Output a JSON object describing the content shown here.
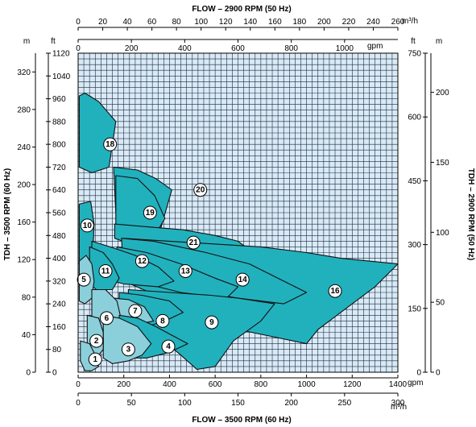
{
  "chart_data": {
    "type": "area",
    "title_top": "FLOW – 2900 RPM (50 Hz)",
    "title_bottom": "FLOW – 3500 RPM (60 Hz)",
    "ylabel_left": "TDH – 3500 RPM (60 Hz)",
    "ylabel_right": "TDH – 2900 RPM (50 Hz)",
    "axes": {
      "bottom_gpm": {
        "unit": "gpm",
        "range": [
          0,
          1400
        ],
        "ticks": [
          "0",
          "200",
          "400",
          "600",
          "800",
          "1000",
          "1200",
          "1400"
        ]
      },
      "bottom_m3h": {
        "unit": "m³/h",
        "range": [
          0,
          300
        ],
        "ticks": [
          "0",
          "50",
          "100",
          "150",
          "200",
          "250",
          "300"
        ]
      },
      "top_m3h": {
        "unit": "m³/h",
        "range": [
          0,
          260
        ],
        "ticks": [
          "0",
          "20",
          "40",
          "60",
          "80",
          "100",
          "120",
          "140",
          "160",
          "180",
          "200",
          "220",
          "240",
          "260"
        ]
      },
      "top_gpm": {
        "unit": "gpm",
        "range": [
          0,
          1200
        ],
        "ticks": [
          "0",
          "200",
          "400",
          "600",
          "800",
          "1000"
        ]
      },
      "left_ft": {
        "unit": "ft",
        "range": [
          0,
          1120
        ],
        "ticks": [
          "0",
          "80",
          "160",
          "240",
          "320",
          "400",
          "480",
          "560",
          "640",
          "720",
          "800",
          "880",
          "960",
          "1040",
          "1120"
        ]
      },
      "left_m": {
        "unit": "m",
        "range": [
          0,
          340
        ],
        "ticks": [
          "0",
          "40",
          "80",
          "120",
          "160",
          "200",
          "240",
          "280",
          "320"
        ]
      },
      "right_ft": {
        "unit": "ft",
        "range": [
          0,
          750
        ],
        "ticks": [
          "0",
          "150",
          "300",
          "450",
          "600",
          "750"
        ]
      },
      "right_m": {
        "unit": "m",
        "range": [
          0,
          228
        ],
        "ticks": [
          "0",
          "50",
          "100",
          "150",
          "200"
        ]
      }
    },
    "regions": [
      {
        "label": "18",
        "shade": "dark",
        "points": [
          [
            5,
            970
          ],
          [
            30,
            980
          ],
          [
            90,
            950
          ],
          [
            165,
            880
          ],
          [
            135,
            720
          ],
          [
            60,
            700
          ],
          [
            5,
            720
          ]
        ]
      },
      {
        "label": "20",
        "shade": "dark",
        "points": [
          [
            155,
            720
          ],
          [
            260,
            710
          ],
          [
            340,
            680
          ],
          [
            410,
            640
          ],
          [
            360,
            500
          ],
          [
            230,
            520
          ],
          [
            165,
            560
          ]
        ]
      },
      {
        "label": "19",
        "shade": "dark",
        "points": [
          [
            165,
            690
          ],
          [
            260,
            680
          ],
          [
            335,
            620
          ],
          [
            380,
            540
          ],
          [
            320,
            460
          ],
          [
            220,
            470
          ],
          [
            165,
            510
          ]
        ]
      },
      {
        "label": "10",
        "shade": "dark",
        "points": [
          [
            5,
            590
          ],
          [
            55,
            600
          ],
          [
            70,
            520
          ],
          [
            65,
            420
          ],
          [
            35,
            370
          ],
          [
            5,
            380
          ]
        ]
      },
      {
        "label": "21",
        "shade": "dark",
        "points": [
          [
            160,
            520
          ],
          [
            310,
            510
          ],
          [
            460,
            500
          ],
          [
            600,
            480
          ],
          [
            700,
            460
          ],
          [
            750,
            430
          ],
          [
            680,
            400
          ],
          [
            420,
            420
          ],
          [
            230,
            450
          ],
          [
            160,
            470
          ]
        ]
      },
      {
        "label": "16",
        "shade": "dark",
        "points": [
          [
            200,
            470
          ],
          [
            400,
            460
          ],
          [
            600,
            450
          ],
          [
            800,
            440
          ],
          [
            1000,
            420
          ],
          [
            1150,
            400
          ],
          [
            1400,
            380
          ],
          [
            1300,
            300
          ],
          [
            1100,
            180
          ],
          [
            1050,
            150
          ],
          [
            1000,
            100
          ],
          [
            700,
            150
          ],
          [
            400,
            250
          ],
          [
            200,
            320
          ]
        ]
      },
      {
        "label": "14",
        "shade": "dark",
        "points": [
          [
            190,
            470
          ],
          [
            330,
            460
          ],
          [
            560,
            420
          ],
          [
            750,
            380
          ],
          [
            900,
            320
          ],
          [
            1000,
            280
          ],
          [
            900,
            240
          ],
          [
            700,
            260
          ],
          [
            400,
            300
          ],
          [
            200,
            330
          ]
        ]
      },
      {
        "label": "13",
        "shade": "dark",
        "points": [
          [
            170,
            440
          ],
          [
            300,
            420
          ],
          [
            450,
            380
          ],
          [
            600,
            330
          ],
          [
            700,
            300
          ],
          [
            650,
            260
          ],
          [
            450,
            280
          ],
          [
            250,
            320
          ],
          [
            170,
            340
          ]
        ]
      },
      {
        "label": "12",
        "shade": "dark",
        "points": [
          [
            60,
            460
          ],
          [
            140,
            440
          ],
          [
            250,
            410
          ],
          [
            350,
            370
          ],
          [
            420,
            320
          ],
          [
            350,
            300
          ],
          [
            200,
            310
          ],
          [
            100,
            330
          ],
          [
            60,
            350
          ]
        ]
      },
      {
        "label": "11",
        "shade": "dark",
        "points": [
          [
            50,
            440
          ],
          [
            110,
            420
          ],
          [
            150,
            380
          ],
          [
            180,
            330
          ],
          [
            150,
            290
          ],
          [
            80,
            290
          ],
          [
            50,
            310
          ]
        ]
      },
      {
        "label": "5",
        "shade": "light",
        "points": [
          [
            5,
            390
          ],
          [
            35,
            410
          ],
          [
            60,
            380
          ],
          [
            70,
            320
          ],
          [
            60,
            260
          ],
          [
            30,
            240
          ],
          [
            5,
            250
          ]
        ]
      },
      {
        "label": "9",
        "shade": "dark",
        "points": [
          [
            220,
            290
          ],
          [
            400,
            280
          ],
          [
            580,
            270
          ],
          [
            700,
            260
          ],
          [
            860,
            240
          ],
          [
            800,
            180
          ],
          [
            680,
            110
          ],
          [
            600,
            20
          ],
          [
            520,
            10
          ],
          [
            450,
            60
          ],
          [
            330,
            140
          ],
          [
            220,
            200
          ]
        ]
      },
      {
        "label": "8",
        "shade": "dark",
        "points": [
          [
            180,
            280
          ],
          [
            280,
            270
          ],
          [
            400,
            250
          ],
          [
            460,
            210
          ],
          [
            380,
            180
          ],
          [
            300,
            160
          ],
          [
            200,
            170
          ],
          [
            180,
            200
          ]
        ]
      },
      {
        "label": "7",
        "shade": "light",
        "points": [
          [
            150,
            260
          ],
          [
            220,
            255
          ],
          [
            290,
            230
          ],
          [
            330,
            180
          ],
          [
            270,
            170
          ],
          [
            200,
            180
          ],
          [
            150,
            200
          ]
        ]
      },
      {
        "label": "6",
        "shade": "light",
        "points": [
          [
            60,
            290
          ],
          [
            120,
            290
          ],
          [
            170,
            250
          ],
          [
            190,
            180
          ],
          [
            150,
            130
          ],
          [
            90,
            120
          ],
          [
            60,
            150
          ]
        ]
      },
      {
        "label": "4",
        "shade": "dark",
        "points": [
          [
            180,
            200
          ],
          [
            260,
            190
          ],
          [
            340,
            160
          ],
          [
            480,
            100
          ],
          [
            400,
            70
          ],
          [
            300,
            50
          ],
          [
            200,
            50
          ],
          [
            180,
            80
          ]
        ]
      },
      {
        "label": "3",
        "shade": "light",
        "points": [
          [
            110,
            200
          ],
          [
            180,
            190
          ],
          [
            260,
            160
          ],
          [
            320,
            100
          ],
          [
            280,
            60
          ],
          [
            220,
            40
          ],
          [
            150,
            30
          ],
          [
            110,
            50
          ]
        ]
      },
      {
        "label": "2",
        "shade": "light",
        "points": [
          [
            40,
            200
          ],
          [
            90,
            190
          ],
          [
            110,
            140
          ],
          [
            110,
            80
          ],
          [
            80,
            50
          ],
          [
            50,
            40
          ],
          [
            40,
            80
          ]
        ]
      },
      {
        "label": "1",
        "shade": "light",
        "points": [
          [
            10,
            110
          ],
          [
            50,
            100
          ],
          [
            75,
            60
          ],
          [
            90,
            20
          ],
          [
            60,
            5
          ],
          [
            30,
            5
          ],
          [
            10,
            40
          ]
        ]
      }
    ],
    "badges": [
      {
        "label": "18",
        "x": 140,
        "y": 800
      },
      {
        "label": "20",
        "x": 535,
        "y": 640
      },
      {
        "label": "19",
        "x": 315,
        "y": 560
      },
      {
        "label": "10",
        "x": 40,
        "y": 515
      },
      {
        "label": "21",
        "x": 505,
        "y": 455
      },
      {
        "label": "12",
        "x": 280,
        "y": 390
      },
      {
        "label": "13",
        "x": 470,
        "y": 355
      },
      {
        "label": "14",
        "x": 720,
        "y": 325
      },
      {
        "label": "16",
        "x": 1125,
        "y": 285
      },
      {
        "label": "11",
        "x": 120,
        "y": 355
      },
      {
        "label": "5",
        "x": 25,
        "y": 325
      },
      {
        "label": "9",
        "x": 585,
        "y": 175
      },
      {
        "label": "8",
        "x": 370,
        "y": 180
      },
      {
        "label": "7",
        "x": 250,
        "y": 215
      },
      {
        "label": "6",
        "x": 125,
        "y": 190
      },
      {
        "label": "4",
        "x": 395,
        "y": 90
      },
      {
        "label": "3",
        "x": 220,
        "y": 80
      },
      {
        "label": "2",
        "x": 80,
        "y": 110
      },
      {
        "label": "1",
        "x": 75,
        "y": 45
      }
    ],
    "colors": {
      "dark": "#21b1bd",
      "light": "#8bcfdb",
      "plot_bg": "#d9eaf5",
      "grid": "#1b2a44"
    },
    "grid": true
  }
}
